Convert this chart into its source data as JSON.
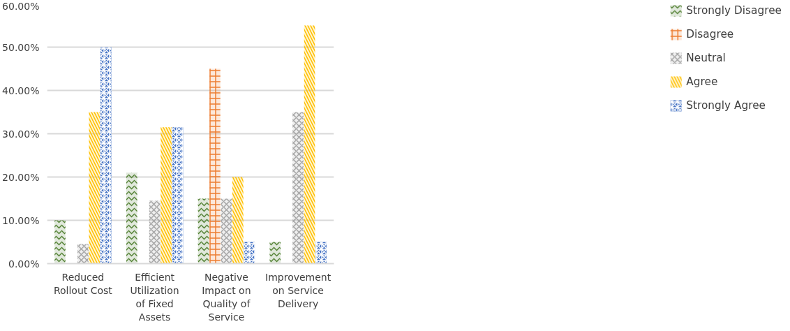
{
  "chart_data": {
    "type": "bar",
    "categories": [
      "Reduced Rollout Cost",
      "Efficient Utilization of Fixed Assets",
      "Negative Impact on Quality of Service",
      "Improvement on Service Delivery"
    ],
    "series": [
      {
        "name": "Strongly Disagree",
        "color": "#548235",
        "values": [
          10,
          21,
          15,
          5
        ]
      },
      {
        "name": "Disagree",
        "color": "#ed7d31",
        "values": [
          0,
          0,
          45,
          0
        ]
      },
      {
        "name": "Neutral",
        "color": "#a5a5a5",
        "values": [
          4.5,
          14.5,
          15,
          35
        ]
      },
      {
        "name": "Agree",
        "color": "#ffc000",
        "values": [
          35,
          31.5,
          20,
          55
        ]
      },
      {
        "name": "Strongly Agree",
        "color": "#4472c4",
        "values": [
          50,
          31.5,
          5,
          5
        ]
      }
    ],
    "ylim": [
      0,
      60
    ],
    "yticks": [
      {
        "value": 0,
        "label": "0.00%"
      },
      {
        "value": 10,
        "label": "10.00%"
      },
      {
        "value": 20,
        "label": "20.00%"
      },
      {
        "value": 30,
        "label": "30.00%"
      },
      {
        "value": 40,
        "label": "40.00%"
      },
      {
        "value": 50,
        "label": "50.00%"
      },
      {
        "value": 60,
        "label": "60.00%"
      }
    ],
    "grid": "y",
    "legend": "right"
  }
}
